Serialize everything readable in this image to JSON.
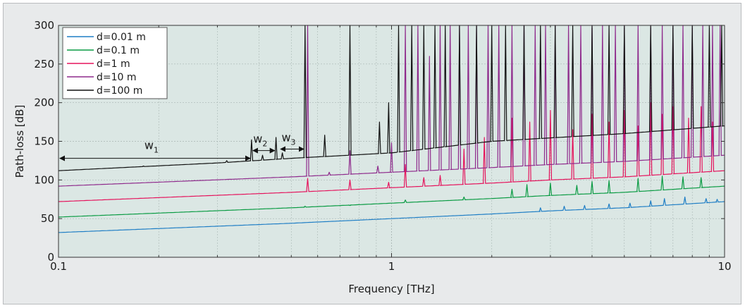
{
  "chart_data": {
    "type": "line",
    "title": "",
    "xlabel": "Frequency [THz]",
    "ylabel": "Path-loss [dB]",
    "x_scale": "log",
    "xlim": [
      0.1,
      10
    ],
    "ylim": [
      0,
      300
    ],
    "x_ticks": [
      0.1,
      1,
      10
    ],
    "x_tick_labels": [
      "0.1",
      "1",
      "10"
    ],
    "y_ticks": [
      0,
      50,
      100,
      150,
      200,
      250,
      300
    ],
    "y_tick_labels": [
      "0",
      "50",
      "100",
      "150",
      "200",
      "250",
      "300"
    ],
    "grid": true,
    "legend_position": "top-left",
    "plot_background": "#dbe7e4",
    "series": [
      {
        "name": "d=0.01 m",
        "color": "#1f7ec5",
        "x": [
          0.1,
          0.5,
          1,
          2,
          3,
          5,
          10
        ],
        "y": [
          32,
          44,
          50,
          56,
          60,
          64,
          72
        ],
        "peaks": [
          [
            2.8,
            64
          ],
          [
            3.3,
            66
          ],
          [
            3.8,
            67
          ],
          [
            4.5,
            69
          ],
          [
            5.2,
            70
          ],
          [
            6.0,
            73
          ],
          [
            6.6,
            76
          ],
          [
            7.6,
            78
          ],
          [
            8.8,
            76
          ],
          [
            9.5,
            75
          ]
        ]
      },
      {
        "name": "d=0.1 m",
        "color": "#0a9b43",
        "x": [
          0.1,
          0.5,
          1,
          2,
          3,
          5,
          10
        ],
        "y": [
          52,
          64,
          70,
          76,
          80,
          84,
          92
        ],
        "peaks": [
          [
            0.55,
            66
          ],
          [
            0.75,
            67
          ],
          [
            1.1,
            74
          ],
          [
            1.65,
            78
          ],
          [
            2.3,
            88
          ],
          [
            2.55,
            94
          ],
          [
            3.0,
            96
          ],
          [
            3.6,
            93
          ],
          [
            4.0,
            98
          ],
          [
            4.5,
            99
          ],
          [
            5.5,
            102
          ],
          [
            6.5,
            105
          ],
          [
            7.5,
            104
          ],
          [
            8.5,
            103
          ]
        ]
      },
      {
        "name": "d=1 m",
        "color": "#e5135c",
        "x": [
          0.1,
          0.5,
          1,
          2,
          3,
          5,
          10
        ],
        "y": [
          72,
          84,
          90,
          96,
          100,
          104,
          112
        ],
        "peaks": [
          [
            0.56,
            102
          ],
          [
            0.75,
            100
          ],
          [
            0.98,
            97
          ],
          [
            1.1,
            120
          ],
          [
            1.25,
            103
          ],
          [
            1.4,
            106
          ],
          [
            1.65,
            140
          ],
          [
            1.9,
            155
          ],
          [
            2.3,
            180
          ],
          [
            2.6,
            175
          ],
          [
            3.0,
            190
          ],
          [
            3.5,
            165
          ],
          [
            4.0,
            185
          ],
          [
            4.5,
            175
          ],
          [
            5.0,
            190
          ],
          [
            5.5,
            170
          ],
          [
            6.0,
            200
          ],
          [
            6.5,
            185
          ],
          [
            7.0,
            195
          ],
          [
            7.8,
            180
          ],
          [
            8.5,
            195
          ],
          [
            9.2,
            175
          ]
        ]
      },
      {
        "name": "d=10 m",
        "color": "#8e2a8c",
        "x": [
          0.1,
          0.5,
          1,
          2,
          3,
          5,
          10
        ],
        "y": [
          92,
          104,
          110,
          116,
          120,
          124,
          132
        ],
        "peaks": [
          [
            0.56,
            300
          ],
          [
            0.65,
            110
          ],
          [
            0.75,
            138
          ],
          [
            0.91,
            118
          ],
          [
            1.0,
            148
          ],
          [
            1.1,
            300
          ],
          [
            1.2,
            300
          ],
          [
            1.3,
            260
          ],
          [
            1.4,
            300
          ],
          [
            1.5,
            300
          ],
          [
            1.6,
            300
          ],
          [
            1.7,
            300
          ],
          [
            1.8,
            300
          ],
          [
            1.95,
            300
          ],
          [
            2.1,
            300
          ],
          [
            2.3,
            300
          ],
          [
            2.5,
            300
          ],
          [
            2.7,
            300
          ],
          [
            2.9,
            300
          ],
          [
            3.1,
            300
          ],
          [
            3.4,
            300
          ],
          [
            3.7,
            300
          ],
          [
            4.0,
            300
          ],
          [
            4.3,
            300
          ],
          [
            4.7,
            300
          ],
          [
            5.0,
            300
          ],
          [
            5.5,
            300
          ],
          [
            6.0,
            300
          ],
          [
            6.5,
            300
          ],
          [
            7.0,
            300
          ],
          [
            7.5,
            300
          ],
          [
            8.0,
            300
          ],
          [
            8.6,
            300
          ],
          [
            9.2,
            300
          ],
          [
            9.7,
            300
          ]
        ]
      },
      {
        "name": "d=100 m",
        "color": "#111111",
        "x": [
          0.1,
          0.3,
          0.5,
          1,
          2,
          5,
          10
        ],
        "y": [
          112,
          122,
          128,
          135,
          150,
          160,
          170
        ],
        "peaks": [
          [
            0.18,
            118
          ],
          [
            0.32,
            125
          ],
          [
            0.38,
            152
          ],
          [
            0.41,
            132
          ],
          [
            0.45,
            155
          ],
          [
            0.47,
            135
          ],
          [
            0.55,
            300
          ],
          [
            0.63,
            158
          ],
          [
            0.75,
            300
          ],
          [
            0.92,
            175
          ],
          [
            0.98,
            200
          ],
          [
            1.05,
            300
          ],
          [
            1.15,
            300
          ],
          [
            1.25,
            300
          ],
          [
            1.35,
            300
          ],
          [
            1.45,
            300
          ],
          [
            1.6,
            300
          ],
          [
            1.8,
            300
          ],
          [
            2.0,
            300
          ],
          [
            2.2,
            300
          ],
          [
            2.5,
            300
          ],
          [
            2.8,
            300
          ],
          [
            3.1,
            300
          ],
          [
            3.5,
            300
          ],
          [
            4.0,
            300
          ],
          [
            4.5,
            300
          ],
          [
            5.0,
            300
          ],
          [
            6.0,
            300
          ],
          [
            7.0,
            300
          ],
          [
            8.0,
            300
          ],
          [
            9.0,
            300
          ],
          [
            9.8,
            300
          ]
        ]
      }
    ],
    "annotations": [
      {
        "label": "w",
        "sub": "1",
        "x_from": 0.1,
        "x_to": 0.38,
        "y_arrow": 128,
        "y_text": 140
      },
      {
        "label": "w",
        "sub": "2",
        "x_from": 0.38,
        "x_to": 0.45,
        "y_arrow": 138,
        "y_text": 148
      },
      {
        "label": "w",
        "sub": "3",
        "x_from": 0.46,
        "x_to": 0.55,
        "y_arrow": 140,
        "y_text": 150
      }
    ]
  }
}
